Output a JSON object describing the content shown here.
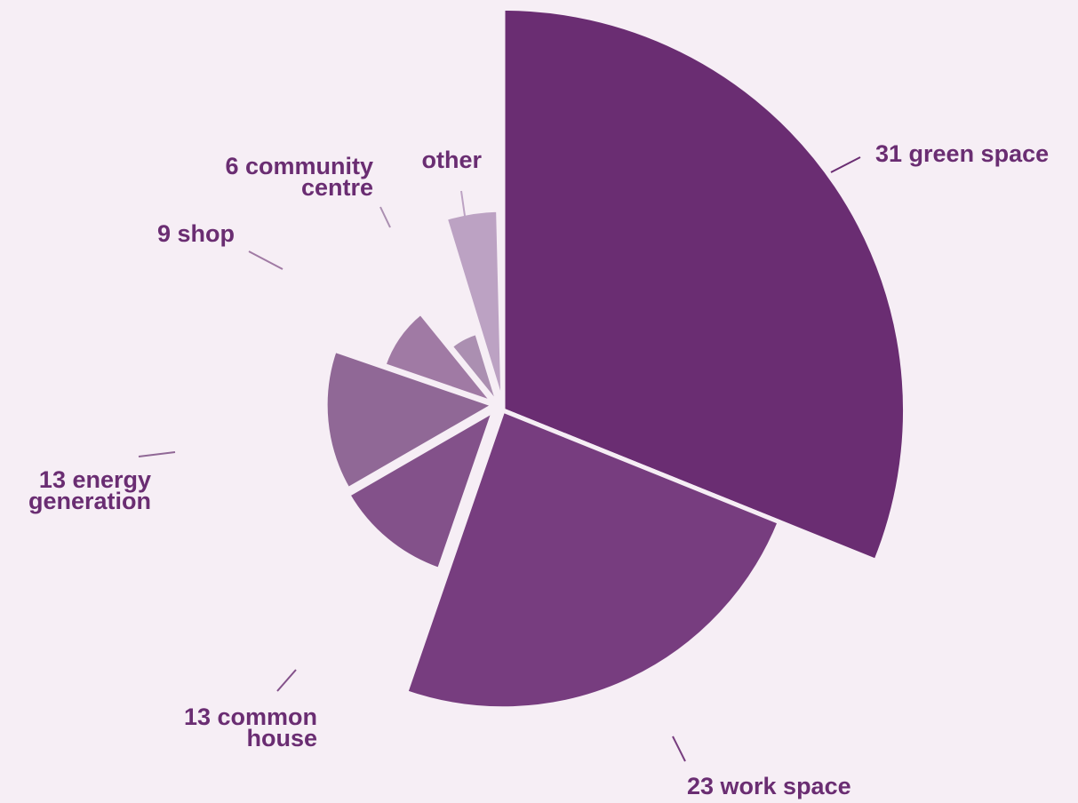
{
  "chart_data": {
    "type": "pie",
    "subtype": "polar-area",
    "title": "",
    "total": 95,
    "slices": [
      {
        "label_lines": [
          "31 green space"
        ],
        "value": 31,
        "color": "#6a2d72"
      },
      {
        "label_lines": [
          "23 work space"
        ],
        "value": 23,
        "color": "#773d7f"
      },
      {
        "label_lines": [
          "13 common",
          "house"
        ],
        "value": 13,
        "color": "#83518a"
      },
      {
        "label_lines": [
          "13 energy",
          "generation"
        ],
        "value": 13,
        "color": "#906896"
      },
      {
        "label_lines": [
          "9 shop"
        ],
        "value": 9,
        "color": "#a07aa4"
      },
      {
        "label_lines": [
          "6 community",
          "centre"
        ],
        "value": 6,
        "color": "#ab8fb1"
      },
      {
        "label_lines": [
          "other"
        ],
        "value": null,
        "color": "#bca2c3"
      }
    ],
    "colors": {
      "background": "#f6eef5",
      "label_text": "#6a2d72"
    }
  }
}
